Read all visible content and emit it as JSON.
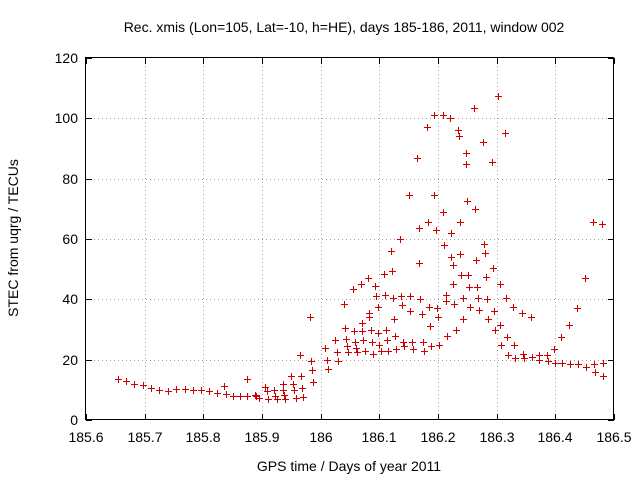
{
  "chart_data": {
    "type": "scatter",
    "title": "Rec. xmis (Lon=105, Lat=-10, h=HE), days 185-186, 2011, window 002",
    "xlabel": "GPS time / Days of year 2011",
    "ylabel": "STEC from uqrg / TECUs",
    "xlim": [
      185.6,
      186.5
    ],
    "ylim": [
      0,
      120
    ],
    "xticks": [
      185.6,
      185.7,
      185.8,
      185.9,
      186.0,
      186.1,
      186.2,
      186.3,
      186.4,
      186.5
    ],
    "xtick_labels": [
      "185.6",
      "185.7",
      "185.8",
      "185.9",
      "186",
      "186.1",
      "186.2",
      "186.3",
      "186.4",
      "186.5"
    ],
    "yticks": [
      0,
      20,
      40,
      60,
      80,
      100,
      120
    ],
    "ytick_labels": [
      "0",
      "20",
      "40",
      "60",
      "80",
      "100",
      "120"
    ],
    "grid": true,
    "marker": "+",
    "color": "#cc0000",
    "series": [
      {
        "name": "STEC",
        "points": [
          [
            185.655,
            13.5
          ],
          [
            185.668,
            13.0
          ],
          [
            185.682,
            12.0
          ],
          [
            185.697,
            11.5
          ],
          [
            185.711,
            10.5
          ],
          [
            185.725,
            10.0
          ],
          [
            185.74,
            9.5
          ],
          [
            185.754,
            10.2
          ],
          [
            185.768,
            10.2
          ],
          [
            185.782,
            10.0
          ],
          [
            185.796,
            9.8
          ],
          [
            185.81,
            9.5
          ],
          [
            185.824,
            9.0
          ],
          [
            185.835,
            11.2
          ],
          [
            185.838,
            8.5
          ],
          [
            185.85,
            8.0
          ],
          [
            185.862,
            7.8
          ],
          [
            185.874,
            13.5
          ],
          [
            185.875,
            7.8
          ],
          [
            185.888,
            8.2
          ],
          [
            185.89,
            7.8
          ],
          [
            185.895,
            7.2
          ],
          [
            185.905,
            11.0
          ],
          [
            185.908,
            9.5
          ],
          [
            185.91,
            7.0
          ],
          [
            185.92,
            10.0
          ],
          [
            185.922,
            8.0
          ],
          [
            185.925,
            6.8
          ],
          [
            185.935,
            12.0
          ],
          [
            185.936,
            10.0
          ],
          [
            185.938,
            8.2
          ],
          [
            185.94,
            7.0
          ],
          [
            185.95,
            14.5
          ],
          [
            185.952,
            12.0
          ],
          [
            185.955,
            10.0
          ],
          [
            185.958,
            7.2
          ],
          [
            185.965,
            21.5
          ],
          [
            185.966,
            14.5
          ],
          [
            185.968,
            10.5
          ],
          [
            185.97,
            7.5
          ],
          [
            185.982,
            34.0
          ],
          [
            185.983,
            19.5
          ],
          [
            185.985,
            16.5
          ],
          [
            185.987,
            12.5
          ],
          [
            186.008,
            24.0
          ],
          [
            186.01,
            20.0
          ],
          [
            186.012,
            17.0
          ],
          [
            186.025,
            26.5
          ],
          [
            186.027,
            22.5
          ],
          [
            186.03,
            19.5
          ],
          [
            186.04,
            38.5
          ],
          [
            186.042,
            30.5
          ],
          [
            186.043,
            27.0
          ],
          [
            186.045,
            24.5
          ],
          [
            186.047,
            22.5
          ],
          [
            186.055,
            43.5
          ],
          [
            186.056,
            29.5
          ],
          [
            186.058,
            26.0
          ],
          [
            186.06,
            24.0
          ],
          [
            186.062,
            22.5
          ],
          [
            186.068,
            45.0
          ],
          [
            186.07,
            32.0
          ],
          [
            186.071,
            29.5
          ],
          [
            186.073,
            26.5
          ],
          [
            186.075,
            23.0
          ],
          [
            186.08,
            47.0
          ],
          [
            186.082,
            35.5
          ],
          [
            186.083,
            34.0
          ],
          [
            186.085,
            30.0
          ],
          [
            186.087,
            26.0
          ],
          [
            186.089,
            22.0
          ],
          [
            186.093,
            44.5
          ],
          [
            186.095,
            41.0
          ],
          [
            186.097,
            37.5
          ],
          [
            186.098,
            29.0
          ],
          [
            186.1,
            25.0
          ],
          [
            186.102,
            23.0
          ],
          [
            186.108,
            48.5
          ],
          [
            186.11,
            41.5
          ],
          [
            186.111,
            30.0
          ],
          [
            186.113,
            26.5
          ],
          [
            186.115,
            23.0
          ],
          [
            186.12,
            56.0
          ],
          [
            186.122,
            49.5
          ],
          [
            186.123,
            40.5
          ],
          [
            186.125,
            33.5
          ],
          [
            186.127,
            28.0
          ],
          [
            186.129,
            23.5
          ],
          [
            186.135,
            60.0
          ],
          [
            186.137,
            41.0
          ],
          [
            186.138,
            38.0
          ],
          [
            186.14,
            26.0
          ],
          [
            186.142,
            24.5
          ],
          [
            186.15,
            74.5
          ],
          [
            186.152,
            41.0
          ],
          [
            186.153,
            36.0
          ],
          [
            186.155,
            26.0
          ],
          [
            186.157,
            23.5
          ],
          [
            186.165,
            87.0
          ],
          [
            186.167,
            63.5
          ],
          [
            186.168,
            52.0
          ],
          [
            186.17,
            40.0
          ],
          [
            186.172,
            35.0
          ],
          [
            186.174,
            26.0
          ],
          [
            186.176,
            23.0
          ],
          [
            186.182,
            97.0
          ],
          [
            186.183,
            65.5
          ],
          [
            186.185,
            37.5
          ],
          [
            186.187,
            31.0
          ],
          [
            186.188,
            24.5
          ],
          [
            186.193,
            101.0
          ],
          [
            186.194,
            74.5
          ],
          [
            186.196,
            63.0
          ],
          [
            186.198,
            37.0
          ],
          [
            186.2,
            34.0
          ],
          [
            186.201,
            25.0
          ],
          [
            186.208,
            101.0
          ],
          [
            186.209,
            69.0
          ],
          [
            186.211,
            58.0
          ],
          [
            186.213,
            41.5
          ],
          [
            186.214,
            39.5
          ],
          [
            186.216,
            28.0
          ],
          [
            186.22,
            100.0
          ],
          [
            186.222,
            62.0
          ],
          [
            186.223,
            54.0
          ],
          [
            186.225,
            51.5
          ],
          [
            186.226,
            45.0
          ],
          [
            186.228,
            38.5
          ],
          [
            186.23,
            30.0
          ],
          [
            186.234,
            96.0
          ],
          [
            186.235,
            94.0
          ],
          [
            186.237,
            65.5
          ],
          [
            186.238,
            55.0
          ],
          [
            186.24,
            48.0
          ],
          [
            186.242,
            40.5
          ],
          [
            186.243,
            33.5
          ],
          [
            186.247,
            88.5
          ],
          [
            186.248,
            85.0
          ],
          [
            186.25,
            72.5
          ],
          [
            186.251,
            48.0
          ],
          [
            186.253,
            44.0
          ],
          [
            186.255,
            37.5
          ],
          [
            186.262,
            103.5
          ],
          [
            186.263,
            70.0
          ],
          [
            186.265,
            53.0
          ],
          [
            186.267,
            44.0
          ],
          [
            186.268,
            40.5
          ],
          [
            186.27,
            36.5
          ],
          [
            186.277,
            92.0
          ],
          [
            186.278,
            58.5
          ],
          [
            186.28,
            55.5
          ],
          [
            186.282,
            47.5
          ],
          [
            186.283,
            40.0
          ],
          [
            186.285,
            33.5
          ],
          [
            186.292,
            85.5
          ],
          [
            186.293,
            50.5
          ],
          [
            186.295,
            36.0
          ],
          [
            186.297,
            30.0
          ],
          [
            186.303,
            107.5
          ],
          [
            186.305,
            45.0
          ],
          [
            186.306,
            31.5
          ],
          [
            186.308,
            25.0
          ],
          [
            186.315,
            95.0
          ],
          [
            186.316,
            40.5
          ],
          [
            186.318,
            27.5
          ],
          [
            186.32,
            21.5
          ],
          [
            186.328,
            37.5
          ],
          [
            186.33,
            25.0
          ],
          [
            186.332,
            20.5
          ],
          [
            186.343,
            35.5
          ],
          [
            186.345,
            22.0
          ],
          [
            186.347,
            20.5
          ],
          [
            186.358,
            34.0
          ],
          [
            186.36,
            21.0
          ],
          [
            186.372,
            21.5
          ],
          [
            186.373,
            20.0
          ],
          [
            186.385,
            21.5
          ],
          [
            186.387,
            19.5
          ],
          [
            186.398,
            23.5
          ],
          [
            186.4,
            19.0
          ],
          [
            186.41,
            27.5
          ],
          [
            186.412,
            19.0
          ],
          [
            186.423,
            31.5
          ],
          [
            186.425,
            18.5
          ],
          [
            186.437,
            37.0
          ],
          [
            186.438,
            18.5
          ],
          [
            186.45,
            47.0
          ],
          [
            186.452,
            17.5
          ],
          [
            186.465,
            65.5
          ],
          [
            186.466,
            18.5
          ],
          [
            186.467,
            16.0
          ],
          [
            186.48,
            65.0
          ],
          [
            186.481,
            19.0
          ],
          [
            186.482,
            14.5
          ]
        ]
      }
    ]
  }
}
